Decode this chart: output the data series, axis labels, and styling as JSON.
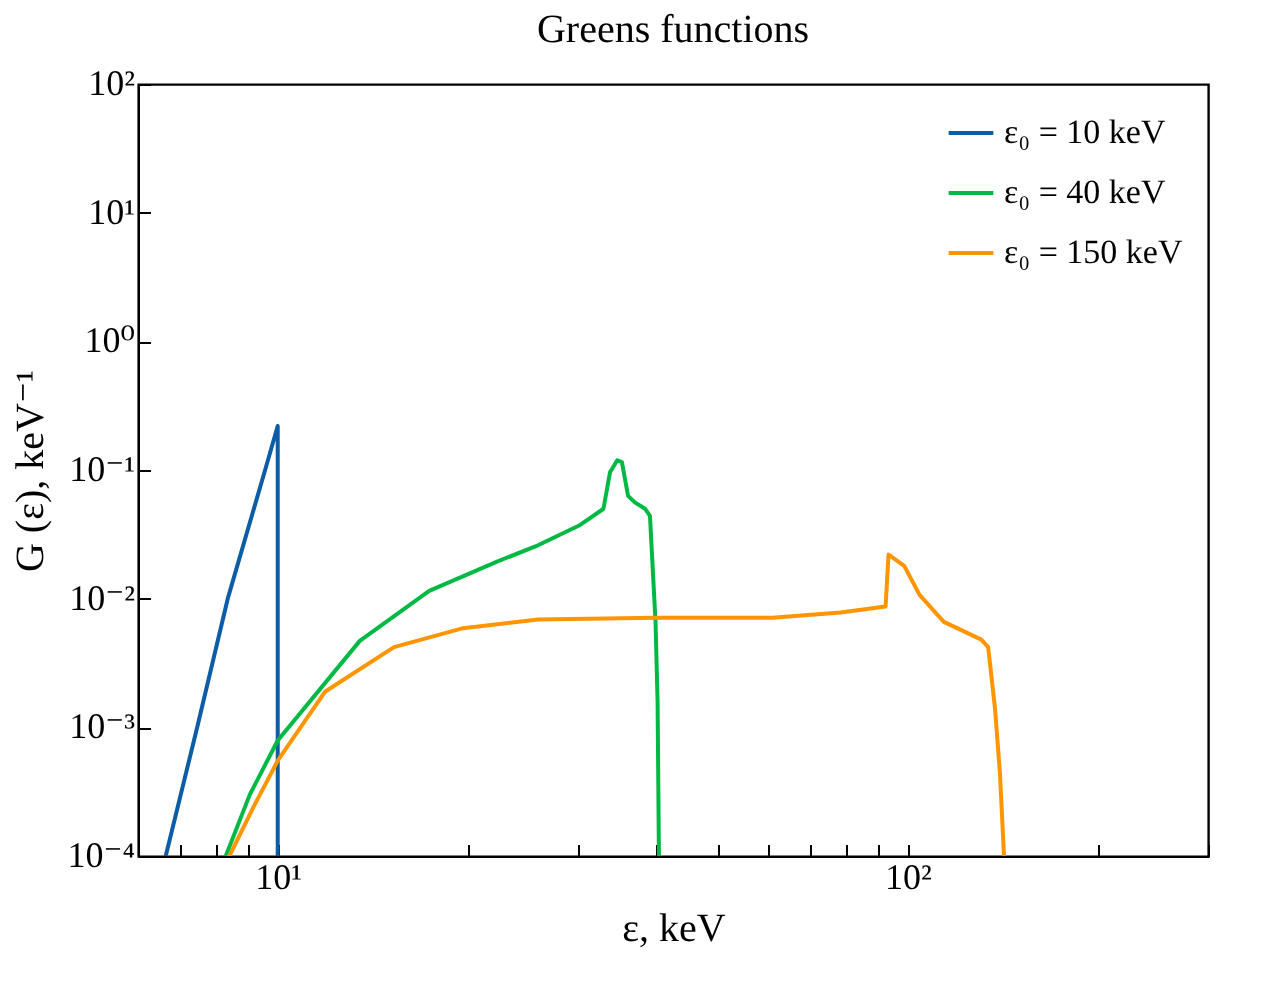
{
  "chart_data": {
    "type": "line",
    "title": "Greens functions",
    "xlabel": "ε, keV",
    "ylabel": "G (ε), keV⁻¹",
    "log": "xy",
    "grid": false,
    "legend": "top right",
    "line_style": "solid",
    "marker": "none",
    "xlim": [
      6,
      300
    ],
    "ylim": [
      0.0001,
      100
    ],
    "xticks": [
      {
        "value": 6,
        "label": null
      },
      {
        "value": 7,
        "label": null
      },
      {
        "value": 8,
        "label": null
      },
      {
        "value": 9,
        "label": null
      },
      {
        "value": 10,
        "label": "10¹"
      },
      {
        "value": 20,
        "label": null
      },
      {
        "value": 30,
        "label": null
      },
      {
        "value": 40,
        "label": null
      },
      {
        "value": 50,
        "label": null
      },
      {
        "value": 60,
        "label": null
      },
      {
        "value": 70,
        "label": null
      },
      {
        "value": 80,
        "label": null
      },
      {
        "value": 90,
        "label": null
      },
      {
        "value": 100,
        "label": "10²"
      },
      {
        "value": 200,
        "label": null
      },
      {
        "value": 300,
        "label": null
      }
    ],
    "yticks": [
      {
        "value": 0.0001,
        "label": "10⁻⁴"
      },
      {
        "value": 0.001,
        "label": "10⁻³"
      },
      {
        "value": 0.01,
        "label": "10⁻²"
      },
      {
        "value": 0.1,
        "label": "10⁻¹"
      },
      {
        "value": 1,
        "label": "10⁰"
      },
      {
        "value": 10,
        "label": "10¹"
      },
      {
        "value": 100,
        "label": "10²"
      }
    ],
    "series": [
      {
        "name": "ε₀ = 10 keV",
        "color": "#0c5da5",
        "x": [
          6.64,
          7.45,
          8.33,
          9.55,
          10,
          10
        ],
        "values": [
          0.0001,
          0.001,
          0.01,
          0.1,
          0.22,
          0.0001
        ]
      },
      {
        "name": "ε₀ = 40 keV",
        "color": "#00b945",
        "x": [
          8.27,
          9.03,
          10,
          13.5,
          17.4,
          22.3,
          25.9,
          30.1,
          32.9,
          33.7,
          34.6,
          35.2,
          36.0,
          36.9,
          38.3,
          39.0,
          39.8,
          40.1,
          40.3
        ],
        "values": [
          0.0001,
          0.0003,
          0.00079,
          0.0047,
          0.0115,
          0.0194,
          0.026,
          0.037,
          0.05,
          0.096,
          0.119,
          0.115,
          0.063,
          0.056,
          0.05,
          0.044,
          0.0066,
          0.0016,
          0.0001
        ]
      },
      {
        "name": "ε₀ = 150 keV",
        "color": "#ff9500",
        "x": [
          8.38,
          9.15,
          10,
          11.9,
          15.3,
          19.7,
          25.9,
          39.8,
          61,
          78.3,
          92.3,
          93.3,
          98.8,
          104.5,
          114.2,
          131,
          134.3,
          137.7,
          140.2,
          142.3
        ],
        "values": [
          0.0001,
          0.00024,
          0.00055,
          0.0019,
          0.0042,
          0.0059,
          0.0069,
          0.0071,
          0.0071,
          0.0078,
          0.0087,
          0.022,
          0.018,
          0.0107,
          0.0066,
          0.0048,
          0.0042,
          0.0014,
          0.00044,
          0.0001
        ]
      }
    ]
  }
}
